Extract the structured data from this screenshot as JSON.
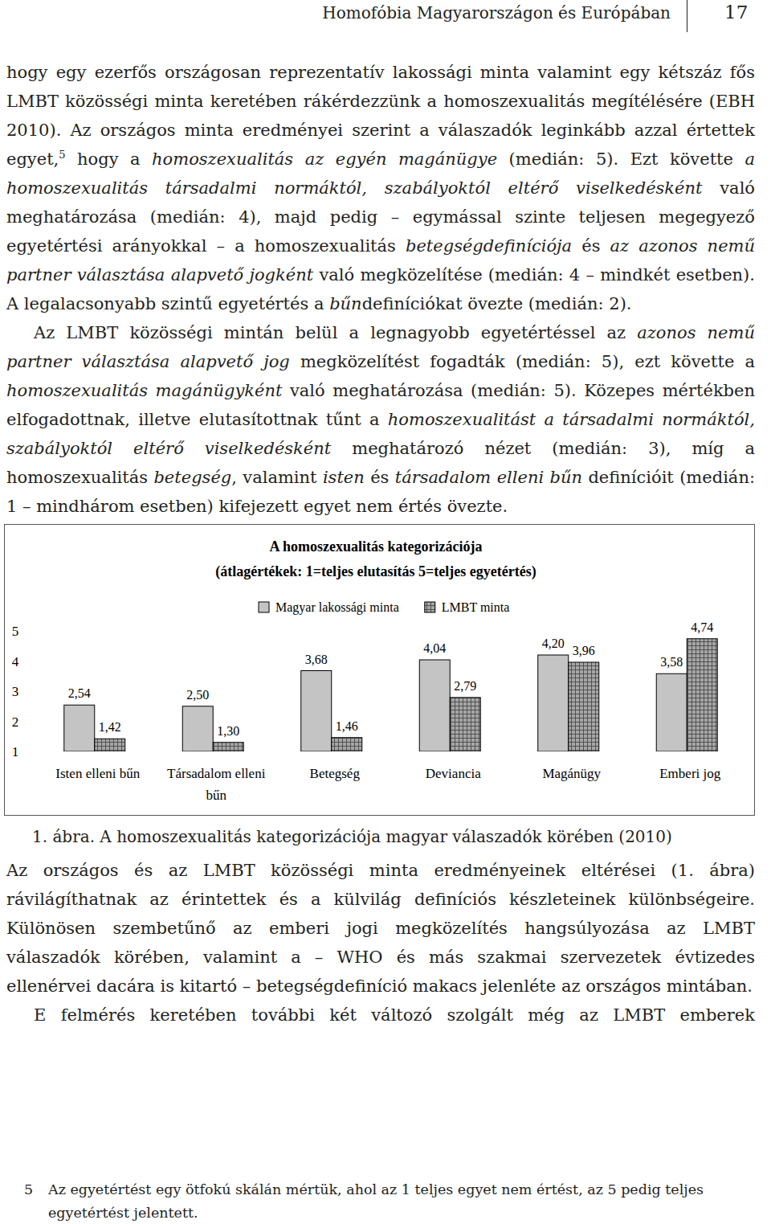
{
  "header": {
    "title": "Homofóbia Magyarországon és Európában",
    "page_number": "17"
  },
  "paragraphs_before": [
    [
      "hogy egy ezerfős országosan reprezentatív lakossági minta valamint egy kétszáz fős LMBT közösségi minta keretében rákérdezzünk a homoszexualitás megítélésére (EBH 2010). Az országos minta eredményei szerint a válaszadók leginkább azzal értettek egyet,",
      {
        "sup": "5"
      },
      " hogy a ",
      {
        "em": "homoszexualitás az egyén magánügye"
      },
      " (medián: 5). Ezt követte ",
      {
        "em": "a homoszexualitás társadalmi normáktól, szabályoktól eltérő viselkedésként"
      },
      " való meghatározása (medián: 4), majd pedig – egymással szinte teljesen megegyező egyetértési arányokkal – a homoszexualitás ",
      {
        "em": "betegségdefiníciója"
      },
      " és ",
      {
        "em": "az azonos nemű partner választása alapvető jogként"
      },
      " való megközelítése (medián: 4 – mindkét esetben). A legalacsonyabb szintű egyetértés a ",
      {
        "em": "bűn"
      },
      "definíciókat övezte (medián: 2)."
    ],
    [
      "Az LMBT közösségi mintán belül a legnagyobb egyetértéssel az ",
      {
        "em": "azonos nemű partner választása alapvető jog"
      },
      " megközelítést fogadták (medián: 5), ezt követte a ",
      {
        "em": "homoszexualitás magánügyként"
      },
      " való meghatározása (medián: 5). Közepes mértékben elfogadottnak, illetve elutasítottnak tűnt a ",
      {
        "em": "homoszexualitást a társadalmi normáktól, szabályoktól eltérő viselkedésként"
      },
      " meghatározó nézet (medián: 3), míg a homoszexualitás ",
      {
        "em": "betegség"
      },
      ", valamint ",
      {
        "em": "isten"
      },
      " és ",
      {
        "em": "társadalom elleni bűn"
      },
      " definícióit (medián: 1 – mindhárom esetben) kifejezett egyet nem értés övezte."
    ]
  ],
  "chart_data": {
    "type": "bar",
    "title": "A homoszexualitás kategorizációja",
    "subtitle": "(átlagértékek: 1=teljes elutasítás 5=teljes egyetértés)",
    "categories": [
      "Isten elleni bűn",
      "Társadalom elleni bűn",
      "Betegség",
      "Deviancia",
      "Magánügy",
      "Emberi jog"
    ],
    "series": [
      {
        "name": "Magyar lakossági minta",
        "color": "#c4c4c4",
        "values": [
          2.54,
          2.5,
          3.68,
          4.04,
          4.2,
          3.58
        ],
        "value_labels": [
          "2,54",
          "2,50",
          "3,68",
          "4,04",
          "4,20",
          "3,58"
        ]
      },
      {
        "name": "LMBT minta",
        "color": "#a6a6a6",
        "values": [
          1.42,
          1.3,
          1.46,
          2.79,
          3.96,
          4.74
        ],
        "value_labels": [
          "1,42",
          "1,30",
          "1,46",
          "2,79",
          "3,96",
          "4,74"
        ]
      }
    ],
    "ylim": [
      1,
      5
    ],
    "yticks": [
      1,
      2,
      3,
      4,
      5
    ],
    "grid": false,
    "legend": "top",
    "data_labels": true
  },
  "caption": "1. ábra. A homoszexualitás kategorizációja magyar válaszadók körében (2010)",
  "paragraphs_after": [
    [
      "Az országos és az LMBT közösségi minta eredményeinek eltérései (1. ábra) rávilágíthatnak az érintettek és a külvilág definíciós készleteinek különbségeire. Különösen szembetűnő az emberi jogi megközelítés hangsúlyozása az LMBT válaszadók körében, valamint a – WHO és más szakmai szervezetek évtizedes ellenérvei dacára is kitartó – betegségdefiníció makacs jelenléte az országos mintában."
    ],
    [
      "E felmérés keretében további két változó szolgált még az LMBT emberek"
    ]
  ],
  "footnote": {
    "mark": "5",
    "text": "Az egyetértést egy ötfokú skálán mértük, ahol az 1 teljes egyet nem értést, az 5 pedig teljes egyetértést jelentett."
  }
}
